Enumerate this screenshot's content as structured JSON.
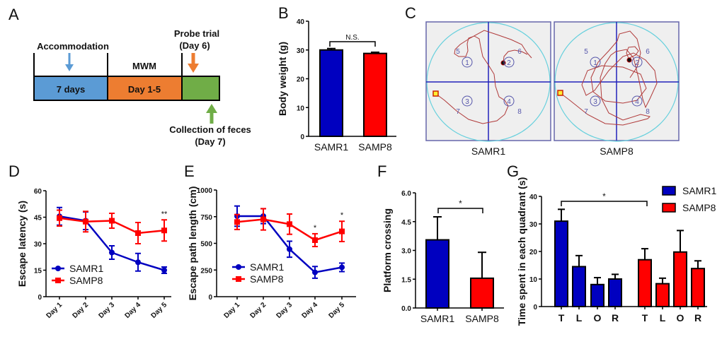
{
  "panel_labels": [
    "A",
    "B",
    "C",
    "D",
    "E",
    "F",
    "G"
  ],
  "timeline": {
    "accommodation": "Accommodation",
    "seven_days": "7 days",
    "mwm": "MWM",
    "day_1_5": "Day 1-5",
    "probe_trial": "Probe trial",
    "day6": "(Day 6)",
    "collection": "Collection of feces",
    "day7": "(Day 7)",
    "colors": {
      "blue": "#5b9bd5",
      "orange": "#ed7d31",
      "green": "#70ad47"
    }
  },
  "trajectories": {
    "groups": [
      "SAMR1",
      "SAMP8"
    ],
    "quadrant_numbers": [
      "1",
      "2",
      "3",
      "4"
    ],
    "zone_numbers": [
      "5",
      "6",
      "7",
      "8"
    ]
  },
  "colors": {
    "samr1": "#0000c0",
    "samp8": "#ff0000"
  },
  "chart_data": [
    {
      "id": "B",
      "type": "bar",
      "ylabel": "Body weight (g)",
      "categories": [
        "SAMR1",
        "SAMP8"
      ],
      "values": [
        30.0,
        28.8
      ],
      "errors": [
        0.5,
        0.4
      ],
      "ylim": [
        0,
        40
      ],
      "yticks": [
        "0",
        "10",
        "20",
        "30",
        "40"
      ],
      "annotation": "N.S."
    },
    {
      "id": "D",
      "type": "line",
      "ylabel": "Escape latency (s)",
      "categories": [
        "Day 1",
        "Day 2",
        "Day 3",
        "Day 4",
        "Day 5"
      ],
      "ylim": [
        0,
        60
      ],
      "yticks": [
        "0",
        "15",
        "30",
        "45",
        "60"
      ],
      "series": [
        {
          "name": "SAMR1",
          "values": [
            45.5,
            43,
            25,
            19.5,
            15
          ],
          "errors": [
            5,
            5,
            3.8,
            5,
            1.8
          ]
        },
        {
          "name": "SAMP8",
          "values": [
            44.5,
            42.5,
            43,
            36,
            37.5
          ],
          "errors": [
            4.5,
            5.8,
            4.2,
            6,
            6
          ]
        }
      ],
      "annotations": [
        {
          "day": "Day 5",
          "text": "**"
        }
      ]
    },
    {
      "id": "E",
      "type": "line",
      "ylabel": "Escape path length (cm)",
      "categories": [
        "Day 1",
        "Day 2",
        "Day 3",
        "Day 4",
        "Day 5"
      ],
      "ylim": [
        0,
        1000
      ],
      "yticks": [
        "0",
        "250",
        "500",
        "750",
        "1000"
      ],
      "series": [
        {
          "name": "SAMR1",
          "values": [
            755,
            755,
            445,
            228,
            275
          ],
          "errors": [
            95,
            70,
            75,
            55,
            40
          ]
        },
        {
          "name": "SAMP8",
          "values": [
            700,
            725,
            680,
            530,
            612
          ],
          "errors": [
            70,
            100,
            95,
            60,
            95
          ]
        }
      ],
      "annotations": [
        {
          "day": "Day 4",
          "text": "*"
        },
        {
          "day": "Day 5",
          "text": "*"
        }
      ]
    },
    {
      "id": "F",
      "type": "bar",
      "ylabel": "Platform crossing",
      "categories": [
        "SAMR1",
        "SAMP8"
      ],
      "values": [
        3.55,
        1.55
      ],
      "errors": [
        1.2,
        1.35
      ],
      "ylim": [
        0,
        6
      ],
      "yticks": [
        "0.0",
        "1.5",
        "3.0",
        "4.5",
        "6.0"
      ],
      "annotation": "*"
    },
    {
      "id": "G",
      "type": "bar",
      "ylabel": "Time spent in each quadrant (s)",
      "categories": [
        "T",
        "L",
        "O",
        "R"
      ],
      "ylim": [
        0,
        40
      ],
      "yticks": [
        "0",
        "10",
        "20",
        "30",
        "40"
      ],
      "series": [
        {
          "name": "SAMR1",
          "values": [
            31,
            14.5,
            8,
            10
          ],
          "errors": [
            4.3,
            4,
            2.5,
            1.7
          ]
        },
        {
          "name": "SAMP8",
          "values": [
            17,
            8.3,
            19.8,
            13.8
          ],
          "errors": [
            4,
            2,
            7.8,
            2.8
          ]
        }
      ],
      "legend": "top-right",
      "annotation": "*"
    }
  ]
}
